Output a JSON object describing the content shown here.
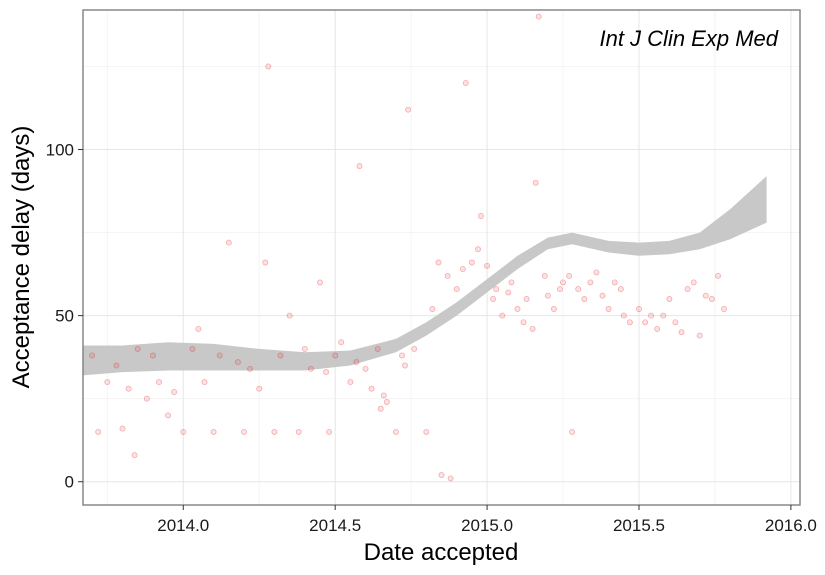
{
  "chart_data": {
    "type": "scatter",
    "title": "",
    "annotation": "Int J Clin Exp Med",
    "xlabel": "Date accepted",
    "ylabel": "Acceptance delay (days)",
    "xlim": [
      2013.67,
      2016.03
    ],
    "ylim": [
      -7,
      142
    ],
    "x_ticks": [
      2014.0,
      2014.5,
      2015.0,
      2015.5,
      2016.0
    ],
    "x_tick_labels": [
      "2014.0",
      "2014.5",
      "2015.0",
      "2015.5",
      "2016.0"
    ],
    "y_ticks": [
      0,
      50,
      100
    ],
    "y_tick_labels": [
      "0",
      "50",
      "100"
    ],
    "grid": true,
    "legend": "none",
    "point_color": "#e8141c",
    "ribbon_color": "#c8c8c8",
    "smooth_band": [
      {
        "x": 2013.67,
        "lower": 32,
        "upper": 41
      },
      {
        "x": 2013.8,
        "lower": 33,
        "upper": 41
      },
      {
        "x": 2013.95,
        "lower": 33.5,
        "upper": 42
      },
      {
        "x": 2014.1,
        "lower": 33.5,
        "upper": 41.5
      },
      {
        "x": 2014.25,
        "lower": 33.5,
        "upper": 40
      },
      {
        "x": 2014.4,
        "lower": 33.5,
        "upper": 39
      },
      {
        "x": 2014.55,
        "lower": 35,
        "upper": 39.5
      },
      {
        "x": 2014.7,
        "lower": 39,
        "upper": 43
      },
      {
        "x": 2014.8,
        "lower": 44,
        "upper": 48
      },
      {
        "x": 2014.9,
        "lower": 50,
        "upper": 54
      },
      {
        "x": 2015.0,
        "lower": 57,
        "upper": 61
      },
      {
        "x": 2015.1,
        "lower": 64,
        "upper": 68
      },
      {
        "x": 2015.2,
        "lower": 70,
        "upper": 73.5
      },
      {
        "x": 2015.28,
        "lower": 71.5,
        "upper": 75
      },
      {
        "x": 2015.4,
        "lower": 69,
        "upper": 72.5
      },
      {
        "x": 2015.5,
        "lower": 68,
        "upper": 72
      },
      {
        "x": 2015.6,
        "lower": 68.5,
        "upper": 72.5
      },
      {
        "x": 2015.7,
        "lower": 70,
        "upper": 75
      },
      {
        "x": 2015.8,
        "lower": 73,
        "upper": 82
      },
      {
        "x": 2015.92,
        "lower": 78,
        "upper": 92
      }
    ],
    "series": [
      {
        "points": [
          [
            2013.7,
            38
          ],
          [
            2013.72,
            15
          ],
          [
            2013.75,
            30
          ],
          [
            2013.78,
            35
          ],
          [
            2013.8,
            16
          ],
          [
            2013.82,
            28
          ],
          [
            2013.84,
            8
          ],
          [
            2013.85,
            40
          ],
          [
            2013.88,
            25
          ],
          [
            2013.9,
            38
          ],
          [
            2013.92,
            30
          ],
          [
            2013.95,
            20
          ],
          [
            2013.97,
            27
          ],
          [
            2014.0,
            15
          ],
          [
            2014.03,
            40
          ],
          [
            2014.05,
            46
          ],
          [
            2014.07,
            30
          ],
          [
            2014.1,
            15
          ],
          [
            2014.12,
            38
          ],
          [
            2014.15,
            72
          ],
          [
            2014.18,
            36
          ],
          [
            2014.2,
            15
          ],
          [
            2014.22,
            34
          ],
          [
            2014.25,
            28
          ],
          [
            2014.27,
            66
          ],
          [
            2014.28,
            125
          ],
          [
            2014.3,
            15
          ],
          [
            2014.32,
            38
          ],
          [
            2014.35,
            50
          ],
          [
            2014.38,
            15
          ],
          [
            2014.4,
            40
          ],
          [
            2014.42,
            34
          ],
          [
            2014.45,
            60
          ],
          [
            2014.47,
            33
          ],
          [
            2014.48,
            15
          ],
          [
            2014.5,
            38
          ],
          [
            2014.52,
            42
          ],
          [
            2014.55,
            30
          ],
          [
            2014.57,
            36
          ],
          [
            2014.58,
            95
          ],
          [
            2014.6,
            34
          ],
          [
            2014.62,
            28
          ],
          [
            2014.64,
            40
          ],
          [
            2014.65,
            22
          ],
          [
            2014.66,
            26
          ],
          [
            2014.67,
            24
          ],
          [
            2014.7,
            15
          ],
          [
            2014.72,
            38
          ],
          [
            2014.73,
            35
          ],
          [
            2014.74,
            112
          ],
          [
            2014.76,
            40
          ],
          [
            2014.8,
            15
          ],
          [
            2014.82,
            52
          ],
          [
            2014.84,
            66
          ],
          [
            2014.85,
            2
          ],
          [
            2014.87,
            62
          ],
          [
            2014.88,
            1
          ],
          [
            2014.9,
            58
          ],
          [
            2014.92,
            64
          ],
          [
            2014.93,
            120
          ],
          [
            2014.95,
            66
          ],
          [
            2014.97,
            70
          ],
          [
            2014.98,
            80
          ],
          [
            2015.0,
            65
          ],
          [
            2015.02,
            55
          ],
          [
            2015.03,
            58
          ],
          [
            2015.05,
            50
          ],
          [
            2015.07,
            57
          ],
          [
            2015.08,
            60
          ],
          [
            2015.1,
            52
          ],
          [
            2015.12,
            48
          ],
          [
            2015.13,
            55
          ],
          [
            2015.15,
            46
          ],
          [
            2015.16,
            90
          ],
          [
            2015.17,
            140
          ],
          [
            2015.19,
            62
          ],
          [
            2015.2,
            56
          ],
          [
            2015.22,
            52
          ],
          [
            2015.24,
            58
          ],
          [
            2015.25,
            60
          ],
          [
            2015.27,
            62
          ],
          [
            2015.28,
            15
          ],
          [
            2015.3,
            58
          ],
          [
            2015.32,
            55
          ],
          [
            2015.34,
            60
          ],
          [
            2015.36,
            63
          ],
          [
            2015.38,
            56
          ],
          [
            2015.4,
            52
          ],
          [
            2015.42,
            60
          ],
          [
            2015.44,
            58
          ],
          [
            2015.45,
            50
          ],
          [
            2015.47,
            48
          ],
          [
            2015.5,
            52
          ],
          [
            2015.52,
            48
          ],
          [
            2015.54,
            50
          ],
          [
            2015.56,
            46
          ],
          [
            2015.58,
            50
          ],
          [
            2015.6,
            55
          ],
          [
            2015.62,
            48
          ],
          [
            2015.64,
            45
          ],
          [
            2015.66,
            58
          ],
          [
            2015.68,
            60
          ],
          [
            2015.7,
            44
          ],
          [
            2015.72,
            56
          ],
          [
            2015.74,
            55
          ],
          [
            2015.76,
            62
          ],
          [
            2015.78,
            52
          ]
        ]
      }
    ]
  }
}
